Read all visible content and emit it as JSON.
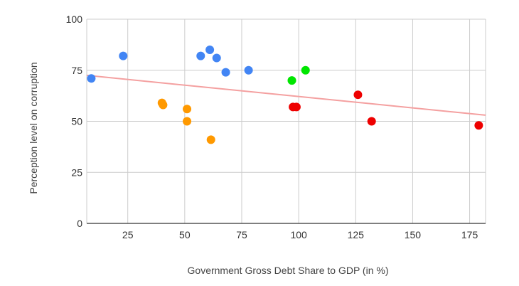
{
  "chart_data": {
    "type": "scatter",
    "title": "",
    "xlabel": "Government Gross Debt Share to GDP (in %)",
    "ylabel": "Perception level on corruption",
    "xlim": [
      7,
      182
    ],
    "ylim": [
      0,
      100
    ],
    "x_ticks": [
      25,
      50,
      75,
      100,
      125,
      150,
      175
    ],
    "y_ticks": [
      0,
      25,
      50,
      75,
      100
    ],
    "x_tick_labels": [
      "25",
      "50",
      "75",
      "100",
      "125",
      "150",
      "175"
    ],
    "y_tick_labels": [
      "0",
      "25",
      "50",
      "75",
      "100"
    ],
    "grid": true,
    "legend": "none",
    "series": [
      {
        "color": "#4285f4",
        "points": [
          {
            "x": 9,
            "y": 71
          },
          {
            "x": 23,
            "y": 82
          },
          {
            "x": 57,
            "y": 82
          },
          {
            "x": 61,
            "y": 85
          },
          {
            "x": 64,
            "y": 81
          },
          {
            "x": 68,
            "y": 74
          },
          {
            "x": 78,
            "y": 75
          }
        ]
      },
      {
        "color": "#ff9900",
        "points": [
          {
            "x": 40,
            "y": 59
          },
          {
            "x": 40.5,
            "y": 58
          },
          {
            "x": 51,
            "y": 56
          },
          {
            "x": 51,
            "y": 50
          },
          {
            "x": 61.5,
            "y": 41
          }
        ]
      },
      {
        "color": "#00e600",
        "points": [
          {
            "x": 97,
            "y": 70
          },
          {
            "x": 103,
            "y": 75
          }
        ]
      },
      {
        "color": "#ee0000",
        "points": [
          {
            "x": 97.5,
            "y": 57
          },
          {
            "x": 99,
            "y": 57
          },
          {
            "x": 126,
            "y": 63
          },
          {
            "x": 132,
            "y": 50
          },
          {
            "x": 179,
            "y": 48
          }
        ]
      }
    ],
    "trendline": {
      "color": "#f4a0a0",
      "type": "linear",
      "start": {
        "x": 7,
        "y": 72.5
      },
      "end": {
        "x": 182,
        "y": 53
      }
    }
  }
}
